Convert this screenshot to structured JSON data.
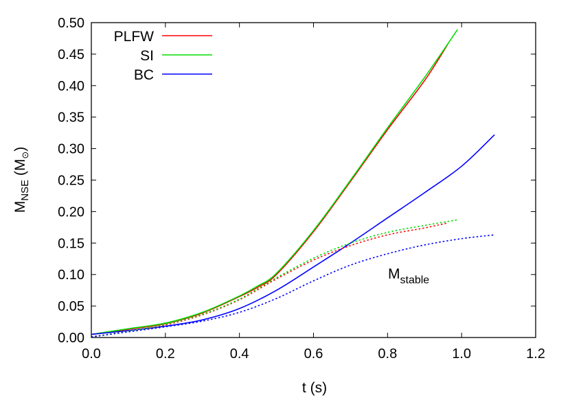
{
  "chart_data": {
    "type": "line",
    "xlabel": "t (s)",
    "ylabel": {
      "main": "M",
      "sub": "NSE",
      "unit_open": " (M",
      "unit_sub": "⊙",
      "unit_close": ")"
    },
    "xlim": [
      0.0,
      1.2
    ],
    "ylim": [
      0.0,
      0.5
    ],
    "xticks": [
      "0.0",
      "0.2",
      "0.4",
      "0.6",
      "0.8",
      "1.0",
      "1.2"
    ],
    "yticks": [
      "0.00",
      "0.05",
      "0.10",
      "0.15",
      "0.20",
      "0.25",
      "0.30",
      "0.35",
      "0.40",
      "0.45",
      "0.50"
    ],
    "grid": false,
    "legend": "top-left",
    "annotation": {
      "main": "M",
      "sub": "stable"
    },
    "series": [
      {
        "name": "PLFW",
        "color": "#ff0000",
        "style": "solid",
        "x": [
          0,
          0.1,
          0.2,
          0.3,
          0.4,
          0.45,
          0.5,
          0.6,
          0.7,
          0.8,
          0.9,
          0.963
        ],
        "y": [
          0.005,
          0.013,
          0.022,
          0.039,
          0.065,
          0.08,
          0.1,
          0.168,
          0.248,
          0.33,
          0.408,
          0.466
        ]
      },
      {
        "name": "SI",
        "color": "#00dd00",
        "style": "solid",
        "x": [
          0,
          0.1,
          0.2,
          0.3,
          0.4,
          0.45,
          0.5,
          0.6,
          0.7,
          0.8,
          0.9,
          0.989
        ],
        "y": [
          0.005,
          0.014,
          0.023,
          0.04,
          0.066,
          0.082,
          0.102,
          0.17,
          0.25,
          0.333,
          0.413,
          0.489
        ]
      },
      {
        "name": "BC",
        "color": "#0000ff",
        "style": "solid",
        "x": [
          0,
          0.1,
          0.2,
          0.3,
          0.4,
          0.5,
          0.6,
          0.7,
          0.8,
          0.9,
          1.0,
          1.089
        ],
        "y": [
          0.005,
          0.011,
          0.018,
          0.028,
          0.046,
          0.075,
          0.112,
          0.15,
          0.19,
          0.23,
          0.272,
          0.322
        ]
      },
      {
        "color": "#ff0000",
        "style": "dotted",
        "x": [
          0,
          0.1,
          0.2,
          0.3,
          0.4,
          0.5,
          0.6,
          0.7,
          0.8,
          0.9,
          0.963
        ],
        "y": [
          0.001,
          0.01,
          0.02,
          0.036,
          0.06,
          0.093,
          0.123,
          0.146,
          0.163,
          0.174,
          0.182
        ]
      },
      {
        "color": "#00dd00",
        "style": "dotted",
        "x": [
          0,
          0.1,
          0.2,
          0.3,
          0.4,
          0.5,
          0.6,
          0.7,
          0.8,
          0.9,
          0.99
        ],
        "y": [
          0.001,
          0.01,
          0.021,
          0.037,
          0.061,
          0.095,
          0.126,
          0.15,
          0.167,
          0.178,
          0.187
        ]
      },
      {
        "color": "#0000ff",
        "style": "dotted",
        "x": [
          0,
          0.1,
          0.2,
          0.3,
          0.4,
          0.5,
          0.6,
          0.7,
          0.8,
          0.9,
          1.0,
          1.089
        ],
        "y": [
          0.001,
          0.009,
          0.017,
          0.026,
          0.04,
          0.062,
          0.09,
          0.115,
          0.133,
          0.147,
          0.157,
          0.163
        ]
      }
    ]
  }
}
